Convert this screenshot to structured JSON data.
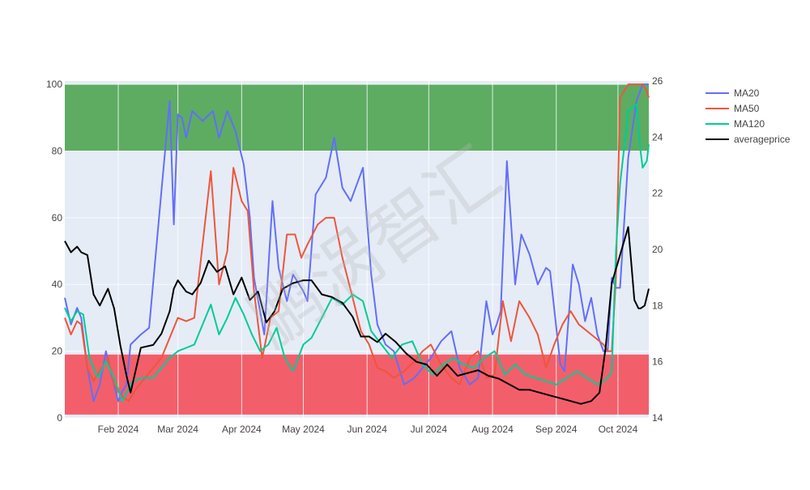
{
  "chart_data": {
    "type": "line",
    "title": "",
    "xlabel": "",
    "ylabel": "",
    "y2label": "",
    "grid": true,
    "legend_position": "top-right",
    "x_range": [
      "2024-01-06",
      "2024-10-16"
    ],
    "ylim": [
      0,
      101
    ],
    "y2lim": [
      14,
      26
    ],
    "x_tick_labels": [
      "Feb 2024",
      "Mar 2024",
      "Apr 2024",
      "May 2024",
      "Jun 2024",
      "Jul 2024",
      "Aug 2024",
      "Sep 2024",
      "Oct 2024"
    ],
    "x_tick_dates": [
      "2024-02-01",
      "2024-03-01",
      "2024-04-01",
      "2024-05-01",
      "2024-06-01",
      "2024-07-01",
      "2024-08-01",
      "2024-09-01",
      "2024-10-01"
    ],
    "y_ticks": [
      0,
      20,
      40,
      60,
      80,
      100
    ],
    "y2_ticks": [
      14,
      16,
      18,
      20,
      22,
      24,
      26
    ],
    "bands": [
      {
        "y_from": 80,
        "y_to": 100,
        "color": "#5aaa5f"
      },
      {
        "y_from": 1,
        "y_to": 19,
        "color": "#f25c67"
      }
    ],
    "series": [
      {
        "name": "MA20",
        "axis": "y",
        "color": "#636efa",
        "x": [
          "2024-01-06",
          "2024-01-09",
          "2024-01-12",
          "2024-01-14",
          "2024-01-17",
          "2024-01-20",
          "2024-01-23",
          "2024-01-26",
          "2024-01-29",
          "2024-02-01",
          "2024-02-03",
          "2024-02-05",
          "2024-02-07",
          "2024-02-12",
          "2024-02-16",
          "2024-02-22",
          "2024-02-26",
          "2024-02-28",
          "2024-03-01",
          "2024-03-03",
          "2024-03-05",
          "2024-03-08",
          "2024-03-13",
          "2024-03-18",
          "2024-03-21",
          "2024-03-25",
          "2024-03-29",
          "2024-04-02",
          "2024-04-05",
          "2024-04-07",
          "2024-04-12",
          "2024-04-16",
          "2024-04-19",
          "2024-04-23",
          "2024-04-26",
          "2024-05-01",
          "2024-05-03",
          "2024-05-07",
          "2024-05-12",
          "2024-05-16",
          "2024-05-20",
          "2024-05-24",
          "2024-05-27",
          "2024-05-30",
          "2024-06-03",
          "2024-06-06",
          "2024-06-10",
          "2024-06-14",
          "2024-06-19",
          "2024-06-24",
          "2024-06-28",
          "2024-07-02",
          "2024-07-07",
          "2024-07-12",
          "2024-07-16",
          "2024-07-21",
          "2024-07-25",
          "2024-07-29",
          "2024-08-01",
          "2024-08-03",
          "2024-08-05",
          "2024-08-08",
          "2024-08-12",
          "2024-08-15",
          "2024-08-19",
          "2024-08-23",
          "2024-08-27",
          "2024-08-29",
          "2024-09-03",
          "2024-09-05",
          "2024-09-09",
          "2024-09-12",
          "2024-09-15",
          "2024-09-18",
          "2024-09-21",
          "2024-09-24",
          "2024-09-26",
          "2024-09-28",
          "2024-09-30",
          "2024-10-02",
          "2024-10-06",
          "2024-10-10",
          "2024-10-13",
          "2024-10-15",
          "2024-10-16"
        ],
        "y": [
          36,
          28,
          33,
          30,
          15,
          5,
          10,
          20,
          12,
          5,
          8,
          10,
          22,
          25,
          27,
          68,
          95,
          58,
          91,
          90,
          84,
          92,
          89,
          92,
          84,
          92,
          86,
          76,
          60,
          42,
          25,
          65,
          45,
          35,
          43,
          38,
          35,
          67,
          72,
          84,
          69,
          65,
          70,
          75,
          43,
          28,
          22,
          20,
          10,
          12,
          15,
          18,
          23,
          26,
          15,
          10,
          12,
          35,
          25,
          28,
          32,
          77,
          40,
          55,
          49,
          40,
          45,
          44,
          16,
          14,
          46,
          40,
          29,
          36,
          25,
          20,
          20,
          42,
          39,
          39,
          78,
          95,
          100,
          100,
          100
        ],
        "note": ""
      },
      {
        "name": "MA50",
        "axis": "y",
        "color": "#ef553b",
        "x": [
          "2024-01-06",
          "2024-01-09",
          "2024-01-12",
          "2024-01-14",
          "2024-01-17",
          "2024-01-20",
          "2024-01-23",
          "2024-01-27",
          "2024-01-30",
          "2024-02-02",
          "2024-02-06",
          "2024-02-10",
          "2024-02-14",
          "2024-02-18",
          "2024-02-22",
          "2024-02-26",
          "2024-03-01",
          "2024-03-05",
          "2024-03-09",
          "2024-03-13",
          "2024-03-17",
          "2024-03-21",
          "2024-03-25",
          "2024-03-28",
          "2024-04-01",
          "2024-04-04",
          "2024-04-07",
          "2024-04-11",
          "2024-04-15",
          "2024-04-19",
          "2024-04-23",
          "2024-04-27",
          "2024-04-30",
          "2024-05-03",
          "2024-05-08",
          "2024-05-12",
          "2024-05-16",
          "2024-05-20",
          "2024-05-25",
          "2024-05-29",
          "2024-06-02",
          "2024-06-06",
          "2024-06-10",
          "2024-06-14",
          "2024-06-19",
          "2024-06-24",
          "2024-06-28",
          "2024-07-02",
          "2024-07-07",
          "2024-07-12",
          "2024-07-16",
          "2024-07-21",
          "2024-07-25",
          "2024-07-29",
          "2024-08-02",
          "2024-08-06",
          "2024-08-10",
          "2024-08-14",
          "2024-08-19",
          "2024-08-23",
          "2024-08-27",
          "2024-08-31",
          "2024-09-04",
          "2024-09-08",
          "2024-09-12",
          "2024-09-16",
          "2024-09-20",
          "2024-09-24",
          "2024-09-26",
          "2024-09-28",
          "2024-09-30",
          "2024-10-02",
          "2024-10-06",
          "2024-10-10",
          "2024-10-13",
          "2024-10-15",
          "2024-10-16"
        ],
        "y": [
          30,
          25,
          29,
          28,
          15,
          11,
          14,
          18,
          10,
          7,
          5,
          9,
          12,
          15,
          18,
          24,
          30,
          29,
          30,
          52,
          74,
          40,
          50,
          75,
          65,
          62,
          38,
          18,
          30,
          32,
          55,
          55,
          48,
          52,
          58,
          60,
          60,
          48,
          36,
          26,
          22,
          15,
          14,
          12,
          14,
          17,
          20,
          22,
          16,
          12,
          10,
          18,
          20,
          12,
          13,
          35,
          23,
          35,
          30,
          25,
          15,
          22,
          28,
          32,
          28,
          26,
          24,
          22,
          20,
          20,
          42,
          96,
          100,
          100,
          100,
          98,
          96
        ],
        "note": ""
      },
      {
        "name": "MA120",
        "axis": "y",
        "color": "#00cc96",
        "x": [
          "2024-01-06",
          "2024-01-09",
          "2024-01-12",
          "2024-01-15",
          "2024-01-18",
          "2024-01-22",
          "2024-01-26",
          "2024-01-30",
          "2024-02-03",
          "2024-02-08",
          "2024-02-13",
          "2024-02-18",
          "2024-02-22",
          "2024-02-26",
          "2024-03-01",
          "2024-03-05",
          "2024-03-09",
          "2024-03-13",
          "2024-03-17",
          "2024-03-21",
          "2024-03-25",
          "2024-03-29",
          "2024-04-02",
          "2024-04-06",
          "2024-04-10",
          "2024-04-14",
          "2024-04-18",
          "2024-04-22",
          "2024-04-26",
          "2024-05-01",
          "2024-05-05",
          "2024-05-10",
          "2024-05-15",
          "2024-05-20",
          "2024-05-25",
          "2024-05-30",
          "2024-06-03",
          "2024-06-08",
          "2024-06-13",
          "2024-06-18",
          "2024-06-23",
          "2024-06-28",
          "2024-07-03",
          "2024-07-08",
          "2024-07-13",
          "2024-07-18",
          "2024-07-23",
          "2024-07-28",
          "2024-08-02",
          "2024-08-07",
          "2024-08-12",
          "2024-08-17",
          "2024-08-22",
          "2024-08-27",
          "2024-09-01",
          "2024-09-06",
          "2024-09-11",
          "2024-09-16",
          "2024-09-21",
          "2024-09-24",
          "2024-09-26",
          "2024-09-28",
          "2024-09-30",
          "2024-10-02",
          "2024-10-06",
          "2024-10-10",
          "2024-10-12",
          "2024-10-13",
          "2024-10-15",
          "2024-10-16"
        ],
        "y": [
          33,
          29,
          32,
          31,
          18,
          12,
          17,
          12,
          5,
          11,
          12,
          12,
          15,
          18,
          20,
          21,
          22,
          28,
          34,
          25,
          30,
          36,
          31,
          25,
          20,
          22,
          27,
          18,
          14,
          22,
          24,
          30,
          36,
          34,
          37,
          35,
          26,
          22,
          18,
          22,
          23,
          16,
          13,
          16,
          18,
          16,
          15,
          18,
          20,
          13,
          16,
          13,
          12,
          11,
          10,
          12,
          14,
          12,
          10,
          11,
          12,
          14,
          50,
          70,
          92,
          94,
          80,
          75,
          77,
          82
        ],
        "note": ""
      },
      {
        "name": "averageprice",
        "axis": "y2",
        "color": "#000000",
        "x": [
          "2024-01-06",
          "2024-01-09",
          "2024-01-12",
          "2024-01-14",
          "2024-01-17",
          "2024-01-20",
          "2024-01-23",
          "2024-01-27",
          "2024-01-30",
          "2024-02-02",
          "2024-02-05",
          "2024-02-07",
          "2024-02-12",
          "2024-02-18",
          "2024-02-22",
          "2024-02-26",
          "2024-02-28",
          "2024-03-01",
          "2024-03-05",
          "2024-03-08",
          "2024-03-12",
          "2024-03-16",
          "2024-03-20",
          "2024-03-24",
          "2024-03-28",
          "2024-04-01",
          "2024-04-05",
          "2024-04-09",
          "2024-04-13",
          "2024-04-17",
          "2024-04-21",
          "2024-04-26",
          "2024-05-01",
          "2024-05-05",
          "2024-05-10",
          "2024-05-15",
          "2024-05-20",
          "2024-05-25",
          "2024-05-29",
          "2024-06-02",
          "2024-06-06",
          "2024-06-10",
          "2024-06-15",
          "2024-06-20",
          "2024-06-25",
          "2024-06-30",
          "2024-07-05",
          "2024-07-10",
          "2024-07-15",
          "2024-07-20",
          "2024-07-25",
          "2024-07-30",
          "2024-08-04",
          "2024-08-09",
          "2024-08-14",
          "2024-08-19",
          "2024-08-24",
          "2024-08-29",
          "2024-09-03",
          "2024-09-08",
          "2024-09-13",
          "2024-09-18",
          "2024-09-22",
          "2024-09-25",
          "2024-09-28",
          "2024-10-02",
          "2024-10-06",
          "2024-10-09",
          "2024-10-11",
          "2024-10-12",
          "2024-10-14",
          "2024-10-16"
        ],
        "y": [
          20.3,
          19.9,
          20.1,
          19.9,
          19.8,
          18.4,
          18.0,
          18.6,
          17.9,
          16.6,
          15.5,
          14.9,
          16.5,
          16.6,
          17.0,
          17.8,
          18.6,
          18.9,
          18.5,
          18.4,
          18.8,
          19.6,
          19.2,
          19.4,
          18.4,
          19.0,
          18.2,
          18.5,
          17.4,
          17.8,
          18.6,
          18.8,
          18.9,
          18.9,
          18.4,
          18.3,
          18.1,
          17.6,
          16.9,
          16.9,
          16.7,
          17.0,
          16.7,
          16.3,
          16.0,
          15.9,
          15.5,
          15.9,
          15.5,
          15.6,
          15.7,
          15.5,
          15.4,
          15.2,
          15.0,
          15.0,
          14.9,
          14.8,
          14.7,
          14.6,
          14.5,
          14.6,
          14.9,
          16.5,
          18.8,
          19.8,
          20.8,
          18.2,
          17.9,
          17.9,
          18.0,
          18.6
        ],
        "note": ""
      }
    ]
  },
  "watermark": "鹏涡智汇"
}
